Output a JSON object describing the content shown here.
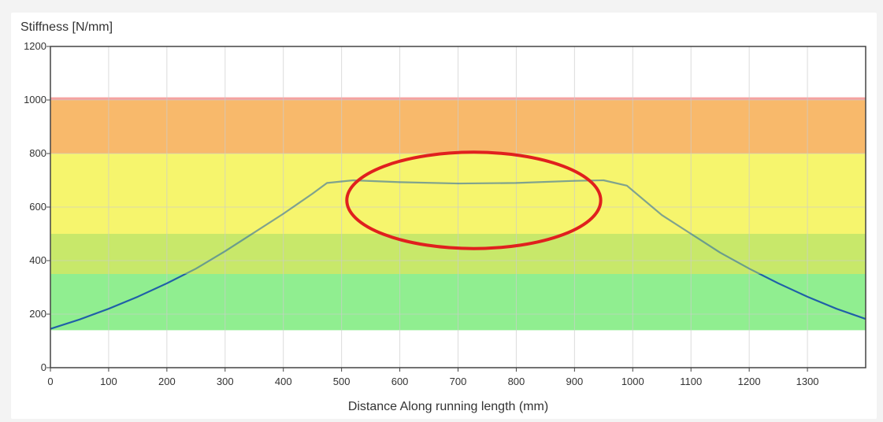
{
  "chart_data": {
    "type": "line",
    "title": "",
    "ylabel": "Stiffness [N/mm]",
    "xlabel": "Distance Along running length (mm)",
    "xlim": [
      0,
      1400
    ],
    "ylim": [
      0,
      1200
    ],
    "x_ticks": [
      0,
      100,
      200,
      300,
      400,
      500,
      600,
      700,
      800,
      900,
      1000,
      1100,
      1200,
      1300
    ],
    "y_ticks": [
      0,
      200,
      400,
      600,
      800,
      1000,
      1200
    ],
    "grid": true,
    "legend": "none",
    "bands": [
      {
        "from": 140,
        "to": 350,
        "color": "#90ee90"
      },
      {
        "from": 350,
        "to": 500,
        "color": "#c8e86a"
      },
      {
        "from": 500,
        "to": 800,
        "color": "#f6f56d"
      },
      {
        "from": 800,
        "to": 1000,
        "color": "#f8b96b"
      },
      {
        "from": 1000,
        "to": 1010,
        "color": "#f5a3a0"
      }
    ],
    "series": [
      {
        "color": "#1f5fa8",
        "x": [
          0,
          50,
          100,
          150,
          200,
          250,
          300,
          350,
          400,
          450,
          475,
          520,
          600,
          700,
          800,
          900,
          950,
          990,
          1050,
          1100,
          1150,
          1200,
          1250,
          1300,
          1350,
          1400
        ],
        "values": [
          145,
          180,
          220,
          265,
          315,
          370,
          435,
          505,
          575,
          650,
          690,
          700,
          693,
          688,
          690,
          698,
          700,
          680,
          570,
          500,
          430,
          370,
          315,
          265,
          220,
          182
        ]
      }
    ],
    "annotation": {
      "type": "ellipse",
      "color": "#e0201e",
      "cx": 727,
      "cy": 625,
      "rx": 218,
      "ry": 180
    }
  }
}
